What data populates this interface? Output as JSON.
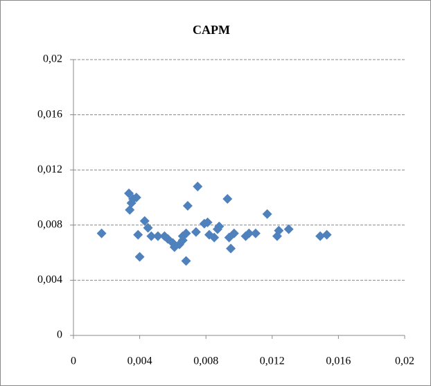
{
  "chart_data": {
    "type": "scatter",
    "title": "CAPM",
    "color": "#4f81bd",
    "grid": true,
    "x": [
      0.0017,
      0.00335,
      0.0034,
      0.0035,
      0.0036,
      0.0038,
      0.0039,
      0.004,
      0.0043,
      0.0045,
      0.0047,
      0.0051,
      0.0055,
      0.0057,
      0.006,
      0.0061,
      0.0064,
      0.0066,
      0.0066,
      0.0068,
      0.0069,
      0.0068,
      0.0074,
      0.0075,
      0.0079,
      0.0081,
      0.0082,
      0.0085,
      0.0087,
      0.0088,
      0.0093,
      0.0094,
      0.0095,
      0.0097,
      0.0104,
      0.0106,
      0.011,
      0.0117,
      0.0123,
      0.0124,
      0.013,
      0.0149,
      0.0153
    ],
    "values": [
      0.0074,
      0.0103,
      0.0091,
      0.0096,
      0.0099,
      0.01,
      0.0073,
      0.0057,
      0.0083,
      0.0078,
      0.0072,
      0.0072,
      0.0072,
      0.007,
      0.0067,
      0.0064,
      0.0066,
      0.0069,
      0.0072,
      0.0054,
      0.0094,
      0.0074,
      0.0075,
      0.0108,
      0.0081,
      0.0082,
      0.0073,
      0.0071,
      0.0077,
      0.0079,
      0.0099,
      0.0071,
      0.0063,
      0.0074,
      0.0072,
      0.0074,
      0.0074,
      0.0088,
      0.0072,
      0.0076,
      0.0077,
      0.0072,
      0.0073
    ],
    "xlim": [
      0,
      0.02
    ],
    "ylim": [
      0,
      0.02
    ],
    "xticks": [
      0,
      {
        "value": 0.004,
        "label": "0,004"
      },
      {
        "value": 0.008,
        "label": "0,008"
      },
      {
        "value": 0.012,
        "label": "0,012"
      },
      {
        "value": 0.016,
        "label": "0,016"
      },
      {
        "value": 0.02,
        "label": "0,02"
      }
    ],
    "yticks": [
      0,
      {
        "value": 0.004,
        "label": "0,004"
      },
      {
        "value": 0.008,
        "label": "0,008"
      },
      {
        "value": 0.012,
        "label": "0,012"
      },
      {
        "value": 0.016,
        "label": "0,016"
      },
      {
        "value": 0.02,
        "label": "0,02"
      }
    ]
  }
}
